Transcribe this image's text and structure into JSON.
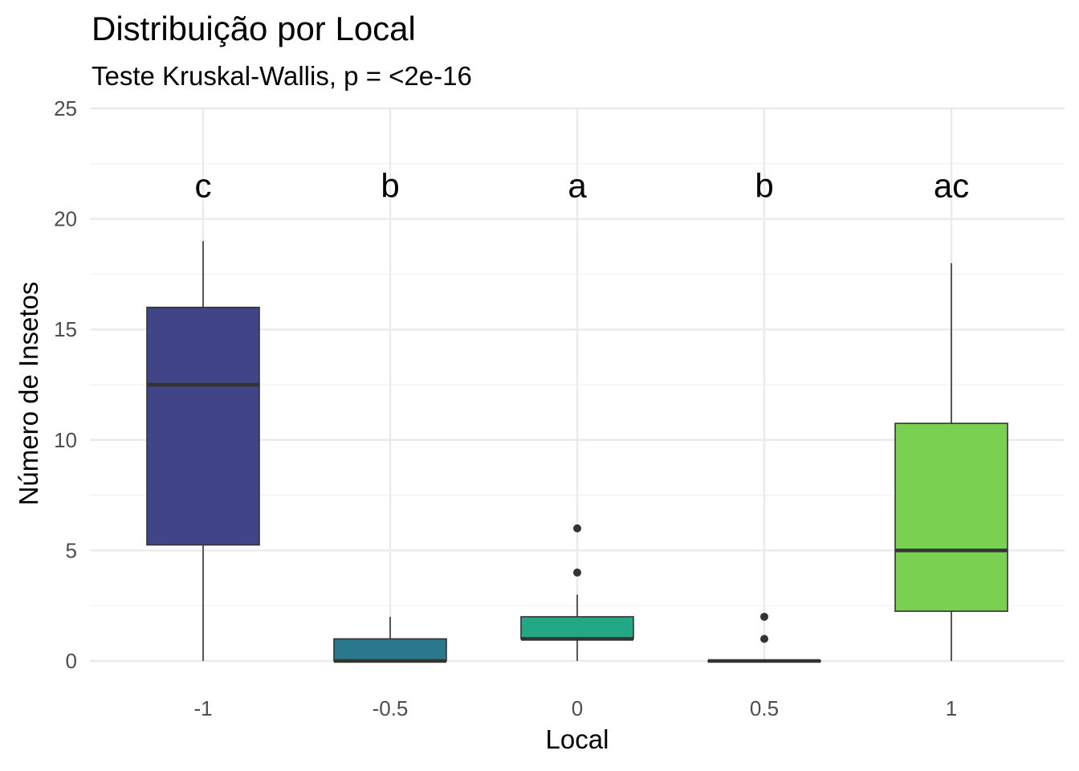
{
  "chart_data": {
    "type": "boxplot",
    "title": "Distribuição por Local",
    "subtitle": "Teste Kruskal-Wallis, p = <2e-16",
    "xlabel": "Local",
    "ylabel": "Número de Insetos",
    "ylim": [
      0,
      25
    ],
    "yticks": [
      0,
      5,
      10,
      15,
      20,
      25
    ],
    "grid": true,
    "legend": "none",
    "categories": [
      "-1",
      "-0.5",
      "0",
      "0.5",
      "1"
    ],
    "boxes": [
      {
        "category": "-1",
        "min": 0,
        "q1": 5.25,
        "median": 12.5,
        "q3": 16,
        "max": 19,
        "outliers": [],
        "color": "#414487",
        "letter": "c"
      },
      {
        "category": "-0.5",
        "min": 0,
        "q1": 0,
        "median": 0,
        "q3": 1,
        "max": 2,
        "outliers": [],
        "color": "#2A788E",
        "letter": "b"
      },
      {
        "category": "0",
        "min": 0,
        "q1": 1,
        "median": 1,
        "q3": 2,
        "max": 3,
        "outliers": [
          4,
          6
        ],
        "color": "#22A884",
        "letter": "a"
      },
      {
        "category": "0.5",
        "min": 0,
        "q1": 0,
        "median": 0,
        "q3": 0,
        "max": 0,
        "outliers": [
          1,
          2
        ],
        "color": "#2A788E",
        "letter": "b"
      },
      {
        "category": "1",
        "min": 0,
        "q1": 2.25,
        "median": 5,
        "q3": 10.75,
        "max": 18,
        "outliers": [],
        "color": "#7AD151",
        "letter": "ac"
      }
    ],
    "letter_y": 21.5
  }
}
